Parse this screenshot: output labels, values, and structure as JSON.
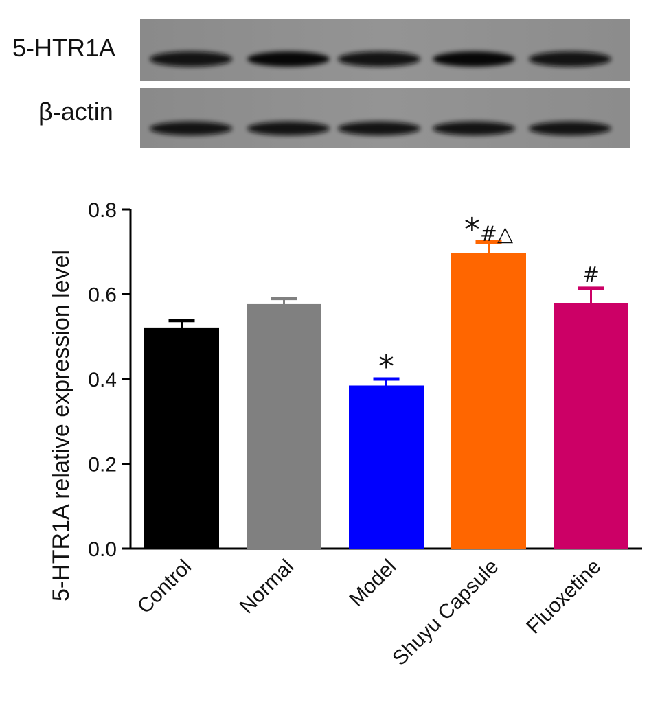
{
  "blot": {
    "rows": [
      {
        "label": "5-HTR1A",
        "band_intensity": [
          0.88,
          0.9,
          0.78,
          0.92,
          0.85
        ]
      },
      {
        "label": "β-actin",
        "band_intensity": [
          0.85,
          0.84,
          0.84,
          0.86,
          0.82
        ]
      }
    ]
  },
  "chart_data": {
    "type": "bar",
    "title": "",
    "xlabel": "",
    "ylabel": "5-HTR1A relative expression level",
    "ylim": [
      0,
      0.8
    ],
    "yticks": [
      "0.0",
      "0.2",
      "0.4",
      "0.6",
      "0.8"
    ],
    "categories": [
      "Control",
      "Normal",
      "Model",
      "Shuyu Capsule",
      "Fluoxetine"
    ],
    "values": [
      0.52,
      0.575,
      0.383,
      0.695,
      0.578
    ],
    "errors": [
      0.018,
      0.015,
      0.017,
      0.028,
      0.036
    ],
    "annotations": [
      "",
      "",
      "*",
      "*#△",
      "#"
    ],
    "colors": [
      "#000000",
      "#808080",
      "#0000ff",
      "#ff6600",
      "#cc0066"
    ],
    "grid": false,
    "legend": "none"
  }
}
